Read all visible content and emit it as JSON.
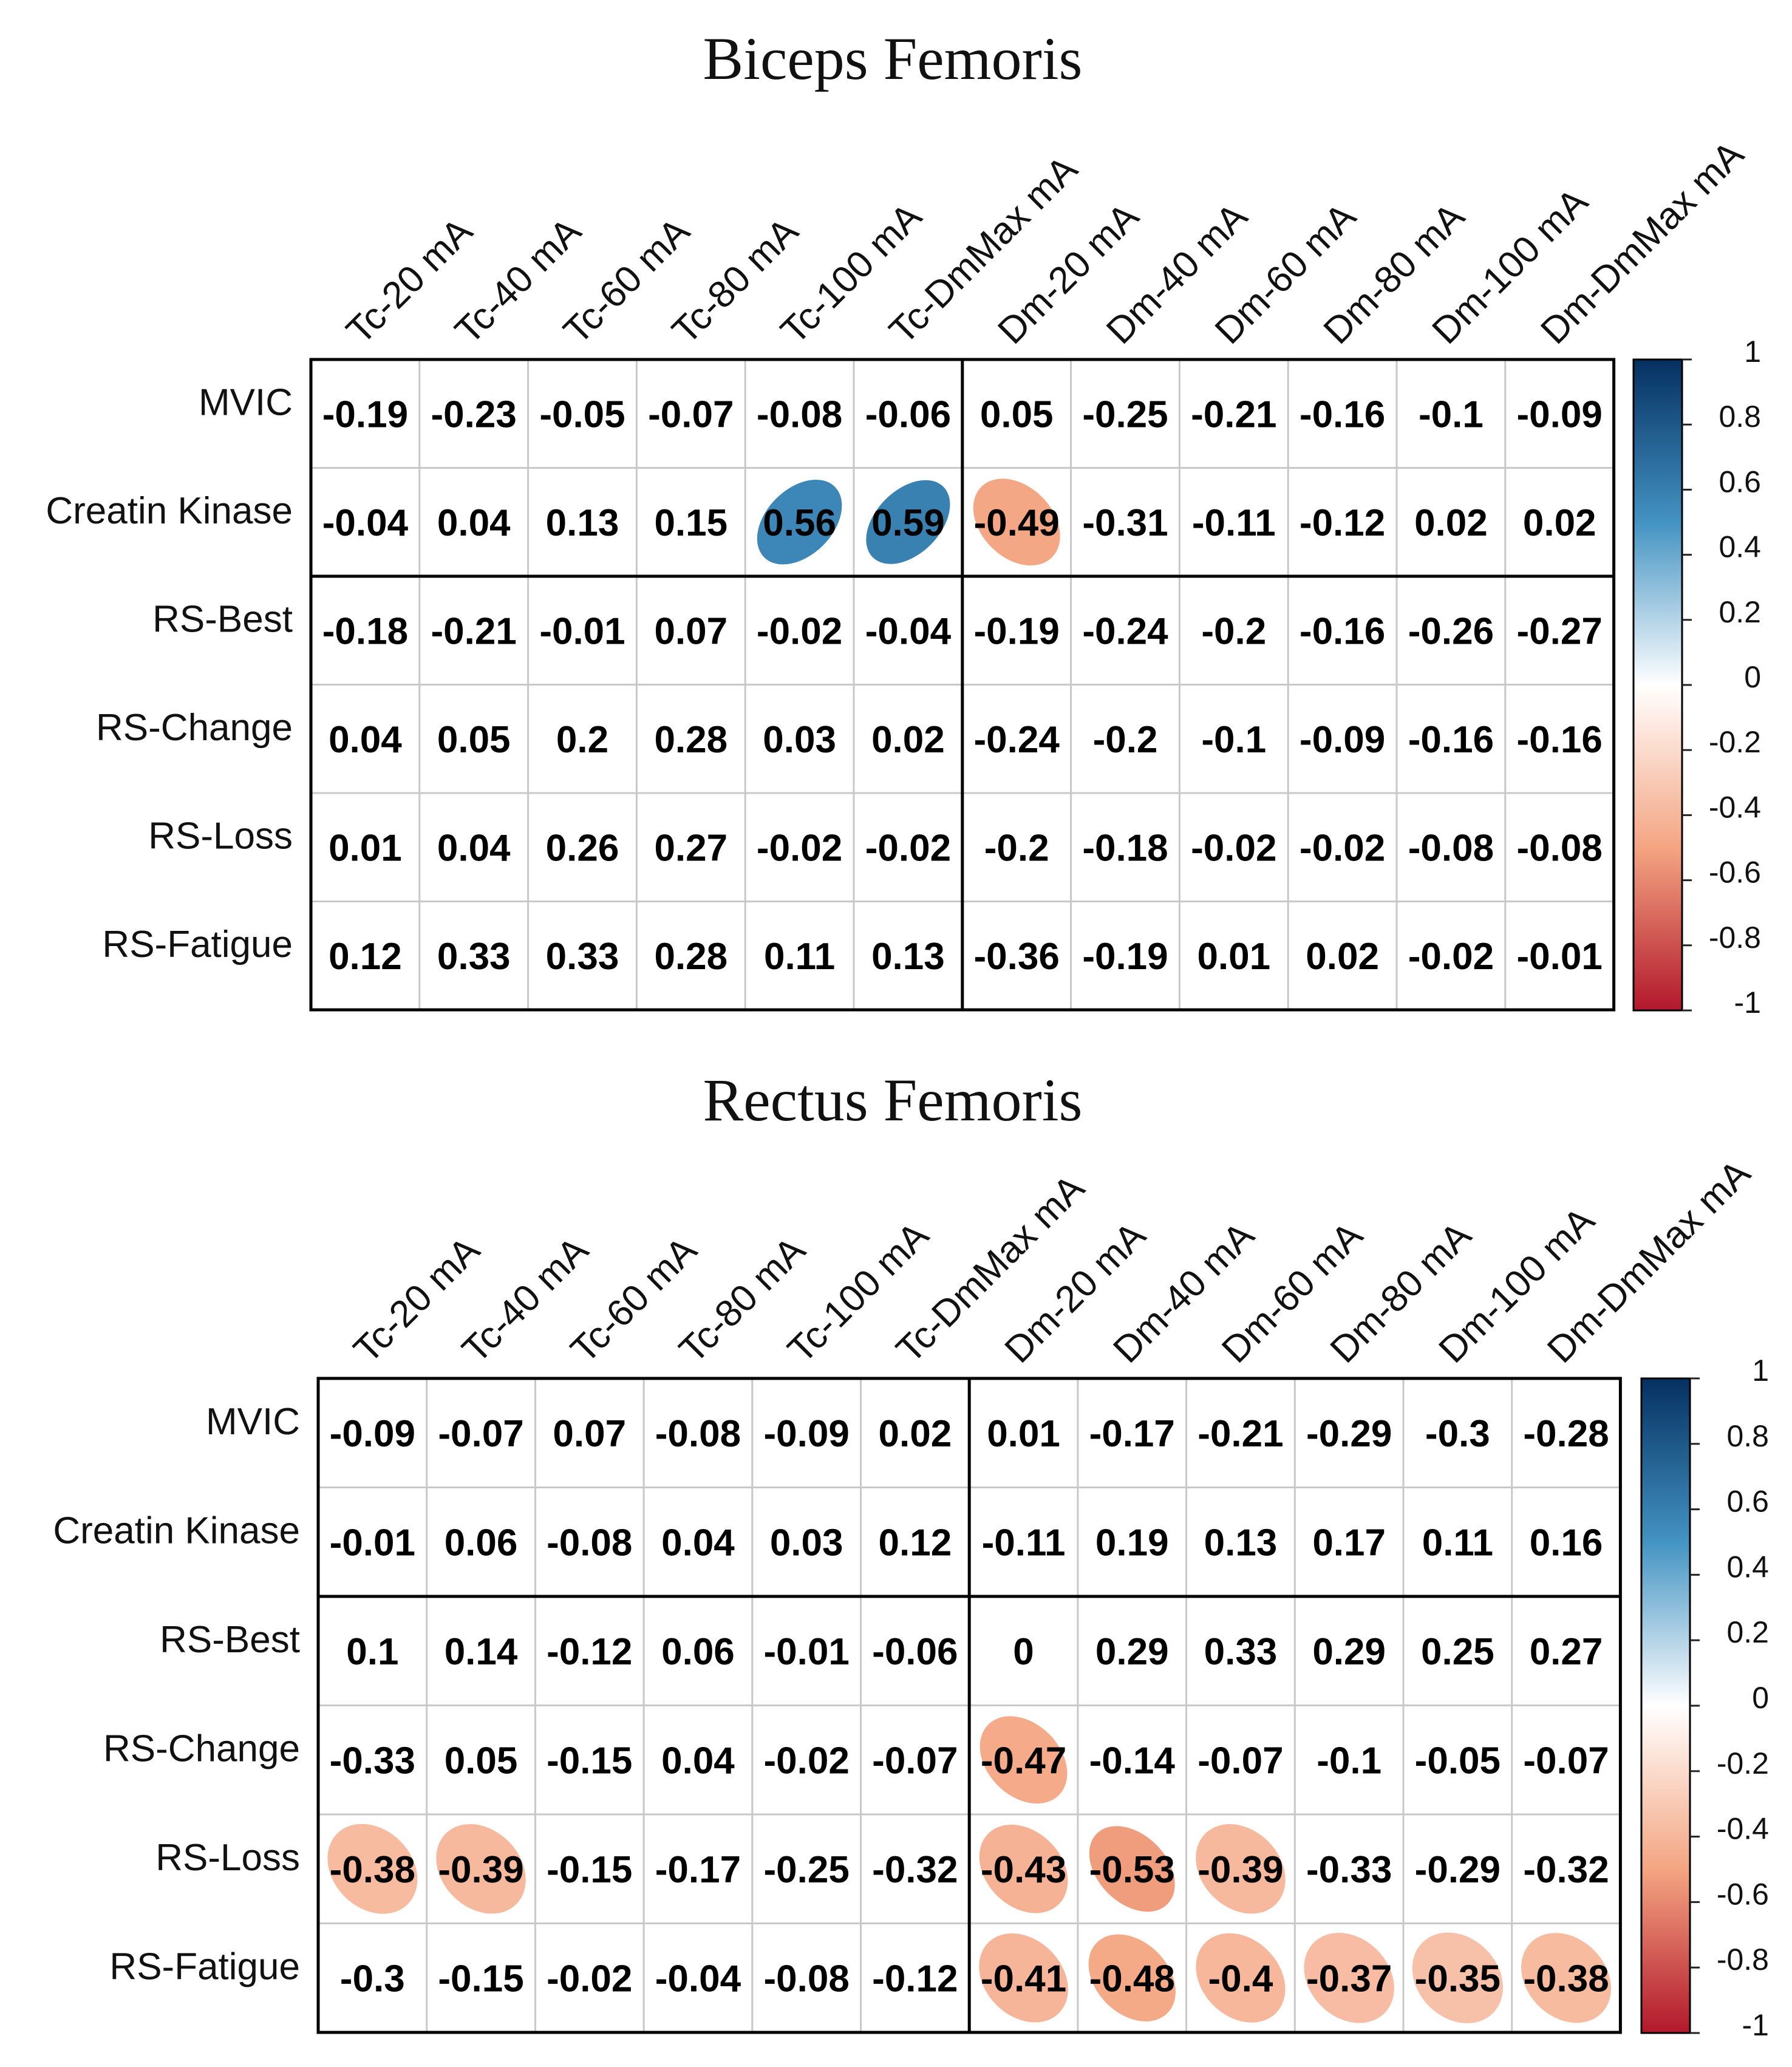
{
  "chart_data": [
    {
      "type": "heatmap",
      "title": "Biceps Femoris",
      "columns": [
        "Tc-20 mA",
        "Tc-40 mA",
        "Tc-60 mA",
        "Tc-80 mA",
        "Tc-100 mA",
        "Tc-DmMax mA",
        "Dm-20 mA",
        "Dm-40 mA",
        "Dm-60 mA",
        "Dm-80 mA",
        "Dm-100 mA",
        "Dm-DmMax mA"
      ],
      "rows": [
        "MVIC",
        "Creatin Kinase",
        "RS-Best",
        "RS-Change",
        "RS-Loss",
        "RS-Fatigue"
      ],
      "values": [
        [
          -0.19,
          -0.23,
          -0.05,
          -0.07,
          -0.08,
          -0.06,
          0.05,
          -0.25,
          -0.21,
          -0.16,
          -0.1,
          -0.09
        ],
        [
          -0.04,
          0.04,
          0.13,
          0.15,
          0.56,
          0.59,
          -0.49,
          -0.31,
          -0.11,
          -0.12,
          0.02,
          0.02
        ],
        [
          -0.18,
          -0.21,
          -0.01,
          0.07,
          -0.02,
          -0.04,
          -0.19,
          -0.24,
          -0.2,
          -0.16,
          -0.26,
          -0.27
        ],
        [
          0.04,
          0.05,
          0.2,
          0.28,
          0.03,
          0.02,
          -0.24,
          -0.2,
          -0.1,
          -0.09,
          -0.16,
          -0.16
        ],
        [
          0.01,
          0.04,
          0.26,
          0.27,
          -0.02,
          -0.02,
          -0.2,
          -0.18,
          -0.02,
          -0.02,
          -0.08,
          -0.08
        ],
        [
          0.12,
          0.33,
          0.33,
          0.28,
          0.11,
          0.13,
          -0.36,
          -0.19,
          0.01,
          0.02,
          -0.02,
          -0.01
        ]
      ],
      "labels": [
        [
          "-0.19",
          "-0.23",
          "-0.05",
          "-0.07",
          "-0.08",
          "-0.06",
          "0.05",
          "-0.25",
          "-0.21",
          "-0.16",
          "-0.1",
          "-0.09"
        ],
        [
          "-0.04",
          "0.04",
          "0.13",
          "0.15",
          "0.56",
          "0.59",
          "-0.49",
          "-0.31",
          "-0.11",
          "-0.12",
          "0.02",
          "0.02"
        ],
        [
          "-0.18",
          "-0.21",
          "-0.01",
          "0.07",
          "-0.02",
          "-0.04",
          "-0.19",
          "-0.24",
          "-0.2",
          "-0.16",
          "-0.26",
          "-0.27"
        ],
        [
          "0.04",
          "0.05",
          "0.2",
          "0.28",
          "0.03",
          "0.02",
          "-0.24",
          "-0.2",
          "-0.1",
          "-0.09",
          "-0.16",
          "-0.16"
        ],
        [
          "0.01",
          "0.04",
          "0.26",
          "0.27",
          "-0.02",
          "-0.02",
          "-0.2",
          "-0.18",
          "-0.02",
          "-0.02",
          "-0.08",
          "-0.08"
        ],
        [
          "0.12",
          "0.33",
          "0.33",
          "0.28",
          "0.11",
          "0.13",
          "-0.36",
          "-0.19",
          "0.01",
          "0.02",
          "-0.02",
          "-0.01"
        ]
      ],
      "ellipses": [
        [
          1,
          4
        ],
        [
          1,
          5
        ],
        [
          1,
          6
        ]
      ],
      "colorbar": {
        "range": [
          -1,
          1
        ],
        "ticks": [
          "1",
          "0.8",
          "0.6",
          "0.4",
          "0.2",
          "0",
          "-0.2",
          "-0.4",
          "-0.6",
          "-0.8",
          "-1"
        ]
      }
    },
    {
      "type": "heatmap",
      "title": "Rectus Femoris",
      "columns": [
        "Tc-20 mA",
        "Tc-40 mA",
        "Tc-60 mA",
        "Tc-80 mA",
        "Tc-100 mA",
        "Tc-DmMax mA",
        "Dm-20 mA",
        "Dm-40 mA",
        "Dm-60 mA",
        "Dm-80 mA",
        "Dm-100 mA",
        "Dm-DmMax mA"
      ],
      "rows": [
        "MVIC",
        "Creatin Kinase",
        "RS-Best",
        "RS-Change",
        "RS-Loss",
        "RS-Fatigue"
      ],
      "values": [
        [
          -0.09,
          -0.07,
          0.07,
          -0.08,
          -0.09,
          0.02,
          0.01,
          -0.17,
          -0.21,
          -0.29,
          -0.3,
          -0.28
        ],
        [
          -0.01,
          0.06,
          -0.08,
          0.04,
          0.03,
          0.12,
          -0.11,
          0.19,
          0.13,
          0.17,
          0.11,
          0.16
        ],
        [
          0.1,
          0.14,
          -0.12,
          0.06,
          -0.01,
          -0.06,
          0,
          0.29,
          0.33,
          0.29,
          0.25,
          0.27
        ],
        [
          -0.33,
          0.05,
          -0.15,
          0.04,
          -0.02,
          -0.07,
          -0.47,
          -0.14,
          -0.07,
          -0.1,
          -0.05,
          -0.07
        ],
        [
          -0.38,
          -0.39,
          -0.15,
          -0.17,
          -0.25,
          -0.32,
          -0.43,
          -0.53,
          -0.39,
          -0.33,
          -0.29,
          -0.32
        ],
        [
          -0.3,
          -0.15,
          -0.02,
          -0.04,
          -0.08,
          -0.12,
          -0.41,
          -0.48,
          -0.4,
          -0.37,
          -0.35,
          -0.38
        ]
      ],
      "labels": [
        [
          "-0.09",
          "-0.07",
          "0.07",
          "-0.08",
          "-0.09",
          "0.02",
          "0.01",
          "-0.17",
          "-0.21",
          "-0.29",
          "-0.3",
          "-0.28"
        ],
        [
          "-0.01",
          "0.06",
          "-0.08",
          "0.04",
          "0.03",
          "0.12",
          "-0.11",
          "0.19",
          "0.13",
          "0.17",
          "0.11",
          "0.16"
        ],
        [
          "0.1",
          "0.14",
          "-0.12",
          "0.06",
          "-0.01",
          "-0.06",
          "0",
          "0.29",
          "0.33",
          "0.29",
          "0.25",
          "0.27"
        ],
        [
          "-0.33",
          "0.05",
          "-0.15",
          "0.04",
          "-0.02",
          "-0.07",
          "-0.47",
          "-0.14",
          "-0.07",
          "-0.1",
          "-0.05",
          "-0.07"
        ],
        [
          "-0.38",
          "-0.39",
          "-0.15",
          "-0.17",
          "-0.25",
          "-0.32",
          "-0.43",
          "-0.53",
          "-0.39",
          "-0.33",
          "-0.29",
          "-0.32"
        ],
        [
          "-0.3",
          "-0.15",
          "-0.02",
          "-0.04",
          "-0.08",
          "-0.12",
          "-0.41",
          "-0.48",
          "-0.4",
          "-0.37",
          "-0.35",
          "-0.38"
        ]
      ],
      "ellipses": [
        [
          3,
          6
        ],
        [
          4,
          0
        ],
        [
          4,
          1
        ],
        [
          4,
          6
        ],
        [
          4,
          7
        ],
        [
          4,
          8
        ],
        [
          5,
          6
        ],
        [
          5,
          7
        ],
        [
          5,
          8
        ],
        [
          5,
          9
        ],
        [
          5,
          10
        ],
        [
          5,
          11
        ]
      ],
      "colorbar": {
        "range": [
          -1,
          1
        ],
        "ticks": [
          "1",
          "0.8",
          "0.6",
          "0.4",
          "0.2",
          "0",
          "-0.2",
          "-0.4",
          "-0.6",
          "-0.8",
          "-1"
        ]
      }
    }
  ],
  "colors": {
    "positive_max": "#053061",
    "positive_mid": "#4393C3",
    "neutral": "#FFFFFF",
    "negative_mid": "#F4A582",
    "negative_max": "#B2182B",
    "grid": "#C8C8C8",
    "border": "#000000"
  }
}
